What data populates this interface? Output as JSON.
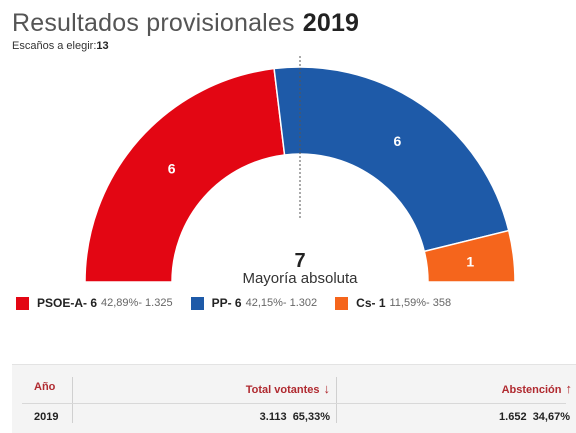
{
  "header": {
    "title": "Resultados provisionales",
    "year": "2019",
    "subtitle_label": "Escaños a elegir:",
    "subtitle_value": "13"
  },
  "center": {
    "majority_number": "7",
    "majority_label": "Mayoría absoluta"
  },
  "chart_data": {
    "type": "pie",
    "total_seats": 13,
    "majority": 7,
    "categories": [
      "PSOE-A",
      "PP",
      "Cs"
    ],
    "values": [
      6,
      6,
      1
    ],
    "colors": [
      "#e30613",
      "#1e5aa8",
      "#f5651c"
    ],
    "legend": [
      {
        "party": "PSOE-A- 6",
        "detail": "42,89%- 1.325",
        "color": "#e30613"
      },
      {
        "party": "PP- 6",
        "detail": "42,15%- 1.302",
        "color": "#1e5aa8"
      },
      {
        "party": "Cs- 1",
        "detail": "11,59%- 358",
        "color": "#f5651c"
      }
    ],
    "seat_labels": [
      "6",
      "6",
      "1"
    ]
  },
  "table": {
    "headers": {
      "year": "Año",
      "total_votantes": "Total votantes",
      "abstencion": "Abstención"
    },
    "arrows": {
      "down": "↓",
      "up": "↑"
    },
    "row": {
      "year": "2019",
      "votantes_num": "3.113",
      "votantes_pct": "65,33%",
      "abstencion_num": "1.652",
      "abstencion_pct": "34,67%"
    }
  }
}
